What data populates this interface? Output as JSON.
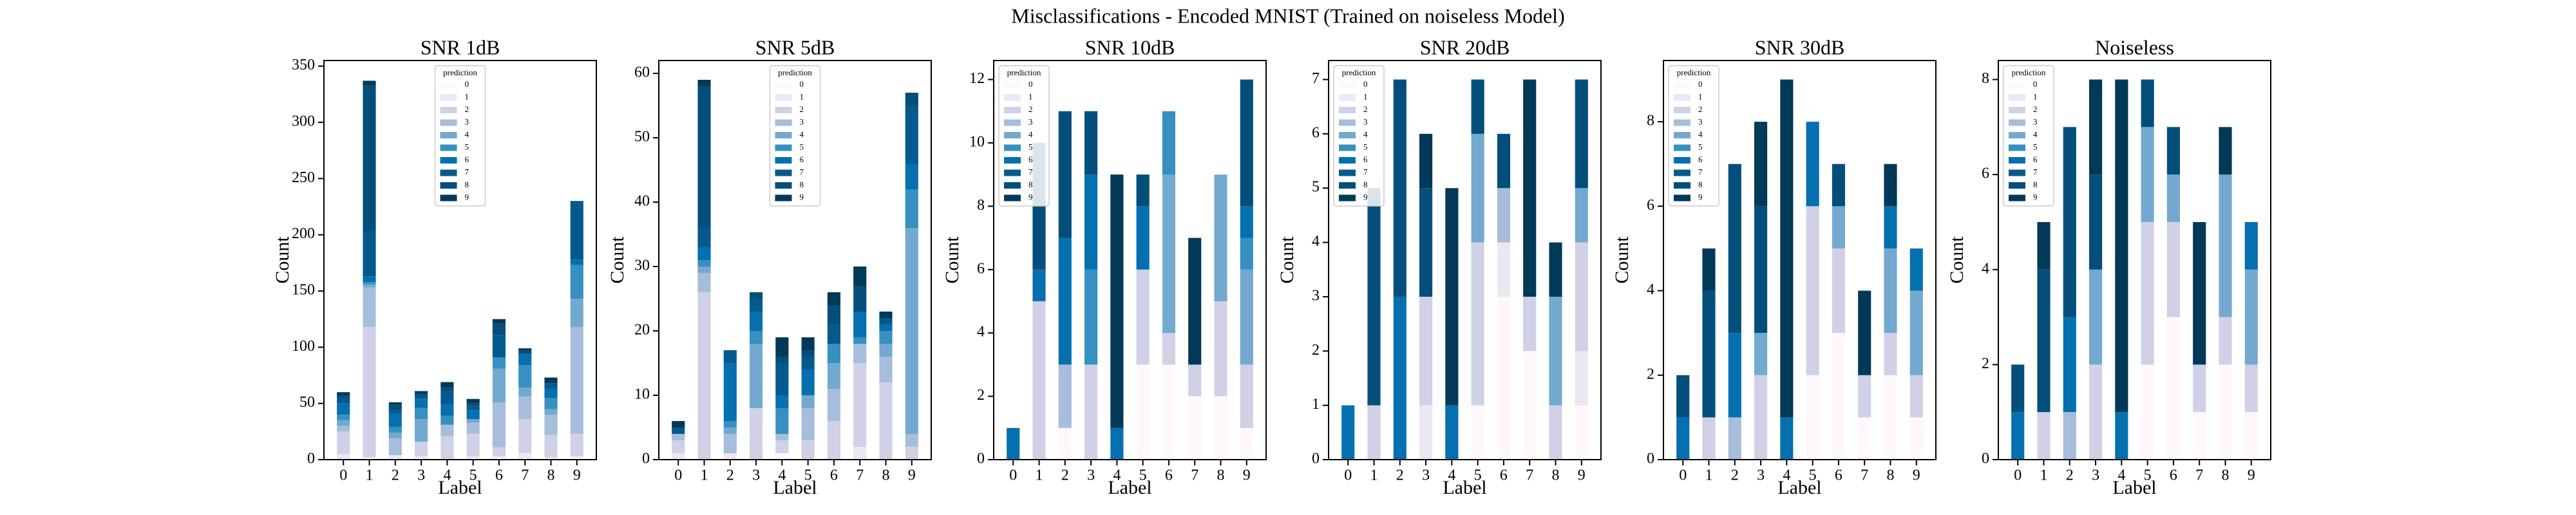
{
  "suptitle": "Misclassifications - Encoded MNIST (Trained on noiseless Model)",
  "chart_data": [
    {
      "type": "stacked-bar",
      "title": "SNR 1dB",
      "xlabel": "Label",
      "ylabel": "Count",
      "legend_title": "prediction",
      "legend": "upper center",
      "categories": [
        "0",
        "1",
        "2",
        "3",
        "4",
        "5",
        "6",
        "7",
        "8",
        "9"
      ],
      "ylim": [
        0,
        355
      ],
      "yticks": [
        0,
        50,
        100,
        150,
        200,
        250,
        300,
        350
      ],
      "series": [
        {
          "name": "0",
          "color": "#fff7fb",
          "values": [
            0,
            2,
            1,
            1,
            0,
            1,
            2,
            1,
            1,
            2
          ]
        },
        {
          "name": "1",
          "color": "#ece7f2",
          "values": [
            5,
            0,
            3,
            2,
            1,
            2,
            1,
            5,
            1,
            1
          ]
        },
        {
          "name": "2",
          "color": "#d0d1e6",
          "values": [
            20,
            116,
            0,
            13,
            20,
            20,
            8,
            30,
            20,
            20
          ]
        },
        {
          "name": "3",
          "color": "#a6bddb",
          "values": [
            5,
            35,
            15,
            0,
            10,
            10,
            40,
            20,
            18,
            95
          ]
        },
        {
          "name": "4",
          "color": "#74a9cf",
          "values": [
            5,
            3,
            5,
            20,
            0,
            3,
            30,
            8,
            5,
            25
          ]
        },
        {
          "name": "5",
          "color": "#3690c0",
          "values": [
            5,
            2,
            5,
            10,
            8,
            0,
            10,
            20,
            10,
            30
          ]
        },
        {
          "name": "6",
          "color": "#0570b0",
          "values": [
            10,
            5,
            12,
            8,
            10,
            8,
            0,
            10,
            8,
            5
          ]
        },
        {
          "name": "7",
          "color": "#045a8d",
          "values": [
            5,
            40,
            3,
            3,
            12,
            4,
            20,
            0,
            5,
            50
          ]
        },
        {
          "name": "8",
          "color": "#034e7b",
          "values": [
            2,
            130,
            5,
            2,
            3,
            2,
            10,
            3,
            0,
            2
          ]
        },
        {
          "name": "9",
          "color": "#023858",
          "values": [
            3,
            4,
            2,
            2,
            5,
            4,
            4,
            2,
            5,
            0
          ]
        }
      ]
    },
    {
      "type": "stacked-bar",
      "title": "SNR 5dB",
      "xlabel": "Label",
      "ylabel": "Count",
      "legend_title": "prediction",
      "legend": "upper center",
      "categories": [
        "0",
        "1",
        "2",
        "3",
        "4",
        "5",
        "6",
        "7",
        "8",
        "9"
      ],
      "ylim": [
        0,
        62
      ],
      "yticks": [
        0,
        10,
        20,
        30,
        40,
        50,
        60
      ],
      "series": [
        {
          "name": "0",
          "color": "#fff7fb",
          "values": [
            0,
            0,
            0,
            0,
            1,
            0,
            0,
            0,
            0,
            0
          ]
        },
        {
          "name": "1",
          "color": "#ece7f2",
          "values": [
            1,
            0,
            1,
            0,
            0,
            0,
            0,
            2,
            0,
            0
          ]
        },
        {
          "name": "2",
          "color": "#d0d1e6",
          "values": [
            2,
            26,
            0,
            8,
            2,
            3,
            6,
            13,
            12,
            2
          ]
        },
        {
          "name": "3",
          "color": "#a6bddb",
          "values": [
            1,
            3,
            3,
            0,
            1,
            5,
            5,
            3,
            4,
            2
          ]
        },
        {
          "name": "4",
          "color": "#74a9cf",
          "values": [
            0,
            1,
            1,
            10,
            0,
            2,
            4,
            0,
            2,
            32
          ]
        },
        {
          "name": "5",
          "color": "#3690c0",
          "values": [
            0,
            1,
            1,
            2,
            4,
            0,
            3,
            1,
            2,
            6
          ]
        },
        {
          "name": "6",
          "color": "#0570b0",
          "values": [
            0,
            2,
            9,
            3,
            2,
            4,
            0,
            4,
            1,
            4
          ]
        },
        {
          "name": "7",
          "color": "#045a8d",
          "values": [
            1,
            3,
            2,
            2,
            5,
            2,
            3,
            0,
            1,
            9
          ]
        },
        {
          "name": "8",
          "color": "#034e7b",
          "values": [
            0,
            22,
            0,
            1,
            1,
            1,
            3,
            4,
            0,
            2
          ]
        },
        {
          "name": "9",
          "color": "#023858",
          "values": [
            1,
            1,
            0,
            0,
            3,
            2,
            2,
            3,
            1,
            0
          ]
        }
      ]
    },
    {
      "type": "stacked-bar",
      "title": "SNR 10dB",
      "xlabel": "Label",
      "ylabel": "Count",
      "legend_title": "prediction",
      "legend": "upper left",
      "categories": [
        "0",
        "1",
        "2",
        "3",
        "4",
        "5",
        "6",
        "7",
        "8",
        "9"
      ],
      "ylim": [
        0,
        12.6
      ],
      "yticks": [
        0,
        2,
        4,
        6,
        8,
        10,
        12
      ],
      "series": [
        {
          "name": "0",
          "color": "#fff7fb",
          "values": [
            0,
            0,
            1,
            0,
            0,
            3,
            3,
            2,
            2,
            1
          ]
        },
        {
          "name": "1",
          "color": "#ece7f2",
          "values": [
            0,
            0,
            0,
            0,
            0,
            0,
            0,
            0,
            0,
            0
          ]
        },
        {
          "name": "2",
          "color": "#d0d1e6",
          "values": [
            0,
            5,
            0,
            3,
            0,
            3,
            1,
            1,
            3,
            2
          ]
        },
        {
          "name": "3",
          "color": "#a6bddb",
          "values": [
            0,
            0,
            2,
            0,
            0,
            0,
            0,
            0,
            0,
            0
          ]
        },
        {
          "name": "4",
          "color": "#74a9cf",
          "values": [
            0,
            0,
            0,
            0,
            0,
            0,
            5,
            0,
            4,
            3
          ]
        },
        {
          "name": "5",
          "color": "#3690c0",
          "values": [
            0,
            0,
            0,
            3,
            0,
            0,
            2,
            0,
            0,
            1
          ]
        },
        {
          "name": "6",
          "color": "#0570b0",
          "values": [
            1,
            1,
            4,
            3,
            1,
            2,
            0,
            0,
            0,
            1
          ]
        },
        {
          "name": "7",
          "color": "#045a8d",
          "values": [
            0,
            0,
            0,
            0,
            0,
            0,
            0,
            0,
            0,
            0
          ]
        },
        {
          "name": "8",
          "color": "#034e7b",
          "values": [
            0,
            4,
            4,
            2,
            0,
            1,
            0,
            0,
            0,
            4
          ]
        },
        {
          "name": "9",
          "color": "#023858",
          "values": [
            0,
            0,
            0,
            0,
            8,
            0,
            0,
            4,
            0,
            0
          ]
        }
      ]
    },
    {
      "type": "stacked-bar",
      "title": "SNR 20dB",
      "xlabel": "Label",
      "ylabel": "Count",
      "legend_title": "prediction",
      "legend": "upper left",
      "categories": [
        "0",
        "1",
        "2",
        "3",
        "4",
        "5",
        "6",
        "7",
        "8",
        "9"
      ],
      "ylim": [
        0,
        7.35
      ],
      "yticks": [
        0,
        1,
        2,
        3,
        4,
        5,
        6,
        7
      ],
      "series": [
        {
          "name": "0",
          "color": "#fff7fb",
          "values": [
            0,
            0,
            0,
            0,
            0,
            1,
            3,
            2,
            0,
            1
          ]
        },
        {
          "name": "1",
          "color": "#ece7f2",
          "values": [
            0,
            0,
            0,
            1,
            0,
            0,
            1,
            0,
            0,
            1
          ]
        },
        {
          "name": "2",
          "color": "#d0d1e6",
          "values": [
            0,
            1,
            0,
            2,
            0,
            3,
            0,
            1,
            1,
            2
          ]
        },
        {
          "name": "3",
          "color": "#a6bddb",
          "values": [
            0,
            0,
            0,
            0,
            0,
            0,
            1,
            0,
            0,
            0
          ]
        },
        {
          "name": "4",
          "color": "#74a9cf",
          "values": [
            0,
            0,
            0,
            0,
            0,
            2,
            0,
            0,
            2,
            1
          ]
        },
        {
          "name": "5",
          "color": "#3690c0",
          "values": [
            0,
            0,
            0,
            0,
            0,
            0,
            0,
            0,
            0,
            0
          ]
        },
        {
          "name": "6",
          "color": "#0570b0",
          "values": [
            1,
            0,
            3,
            0,
            1,
            0,
            0,
            0,
            0,
            0
          ]
        },
        {
          "name": "7",
          "color": "#045a8d",
          "values": [
            0,
            0,
            0,
            0,
            0,
            0,
            0,
            0,
            0,
            0
          ]
        },
        {
          "name": "8",
          "color": "#034e7b",
          "values": [
            0,
            4,
            4,
            2,
            0,
            1,
            1,
            0,
            0,
            2
          ]
        },
        {
          "name": "9",
          "color": "#023858",
          "values": [
            0,
            0,
            0,
            1,
            4,
            0,
            0,
            4,
            1,
            0
          ]
        }
      ]
    },
    {
      "type": "stacked-bar",
      "title": "SNR 30dB",
      "xlabel": "Label",
      "ylabel": "Count",
      "legend_title": "prediction",
      "legend": "upper left",
      "categories": [
        "0",
        "1",
        "2",
        "3",
        "4",
        "5",
        "6",
        "7",
        "8",
        "9"
      ],
      "ylim": [
        0,
        9.45
      ],
      "yticks": [
        0,
        2,
        4,
        6,
        8
      ],
      "series": [
        {
          "name": "0",
          "color": "#fff7fb",
          "values": [
            0,
            0,
            0,
            0,
            0,
            2,
            3,
            1,
            2,
            1
          ]
        },
        {
          "name": "1",
          "color": "#ece7f2",
          "values": [
            0,
            0,
            0,
            0,
            0,
            0,
            0,
            0,
            0,
            0
          ]
        },
        {
          "name": "2",
          "color": "#d0d1e6",
          "values": [
            0,
            1,
            0,
            2,
            0,
            4,
            2,
            1,
            1,
            1
          ]
        },
        {
          "name": "3",
          "color": "#a6bddb",
          "values": [
            0,
            0,
            1,
            0,
            0,
            0,
            0,
            0,
            0,
            0
          ]
        },
        {
          "name": "4",
          "color": "#74a9cf",
          "values": [
            0,
            0,
            0,
            1,
            0,
            0,
            1,
            0,
            2,
            2
          ]
        },
        {
          "name": "5",
          "color": "#3690c0",
          "values": [
            0,
            0,
            0,
            0,
            0,
            0,
            0,
            0,
            0,
            0
          ]
        },
        {
          "name": "6",
          "color": "#0570b0",
          "values": [
            1,
            0,
            2,
            0,
            1,
            2,
            0,
            0,
            1,
            1
          ]
        },
        {
          "name": "7",
          "color": "#045a8d",
          "values": [
            0,
            0,
            0,
            0,
            0,
            0,
            0,
            0,
            0,
            0
          ]
        },
        {
          "name": "8",
          "color": "#034e7b",
          "values": [
            1,
            3,
            4,
            3,
            0,
            0,
            1,
            0,
            0,
            0
          ]
        },
        {
          "name": "9",
          "color": "#023858",
          "values": [
            0,
            1,
            0,
            2,
            8,
            0,
            0,
            2,
            1,
            0
          ]
        }
      ]
    },
    {
      "type": "stacked-bar",
      "title": "Noiseless",
      "xlabel": "Label",
      "ylabel": "Count",
      "legend_title": "prediction",
      "legend": "upper left",
      "categories": [
        "0",
        "1",
        "2",
        "3",
        "4",
        "5",
        "6",
        "7",
        "8",
        "9"
      ],
      "ylim": [
        0,
        8.4
      ],
      "yticks": [
        0,
        2,
        4,
        6,
        8
      ],
      "series": [
        {
          "name": "0",
          "color": "#fff7fb",
          "values": [
            0,
            0,
            0,
            0,
            0,
            2,
            3,
            1,
            2,
            1
          ]
        },
        {
          "name": "1",
          "color": "#ece7f2",
          "values": [
            0,
            0,
            0,
            0,
            0,
            0,
            0,
            0,
            0,
            0
          ]
        },
        {
          "name": "2",
          "color": "#d0d1e6",
          "values": [
            0,
            1,
            0,
            2,
            0,
            3,
            2,
            1,
            1,
            1
          ]
        },
        {
          "name": "3",
          "color": "#a6bddb",
          "values": [
            0,
            0,
            1,
            0,
            0,
            0,
            0,
            0,
            0,
            0
          ]
        },
        {
          "name": "4",
          "color": "#74a9cf",
          "values": [
            0,
            0,
            0,
            2,
            0,
            2,
            1,
            0,
            3,
            2
          ]
        },
        {
          "name": "5",
          "color": "#3690c0",
          "values": [
            0,
            0,
            0,
            0,
            0,
            0,
            0,
            0,
            0,
            0
          ]
        },
        {
          "name": "6",
          "color": "#0570b0",
          "values": [
            1,
            0,
            2,
            0,
            1,
            0,
            0,
            0,
            0,
            1
          ]
        },
        {
          "name": "7",
          "color": "#045a8d",
          "values": [
            0,
            0,
            0,
            0,
            0,
            0,
            0,
            0,
            0,
            0
          ]
        },
        {
          "name": "8",
          "color": "#034e7b",
          "values": [
            1,
            3,
            4,
            2,
            0,
            1,
            1,
            0,
            0,
            0
          ]
        },
        {
          "name": "9",
          "color": "#023858",
          "values": [
            0,
            1,
            0,
            2,
            7,
            0,
            0,
            3,
            1,
            0
          ]
        }
      ]
    }
  ]
}
